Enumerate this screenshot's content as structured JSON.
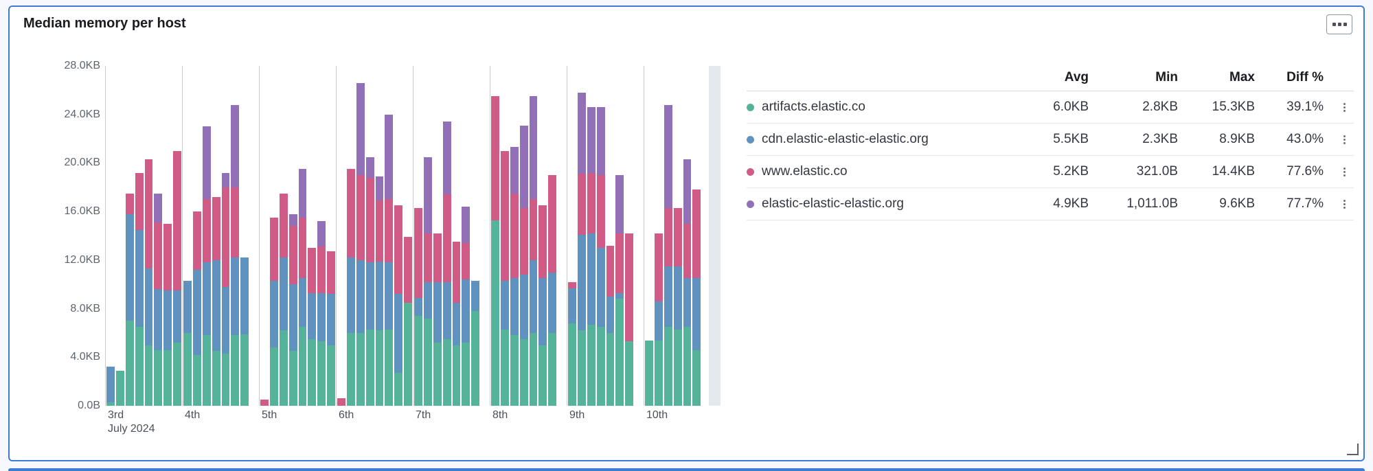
{
  "panel": {
    "title": "Median memory per host",
    "options_icon": "boxes-horizontal-icon",
    "accent_border_color": "#3d7bd7"
  },
  "legend": {
    "columns": [
      "Avg",
      "Min",
      "Max",
      "Diff %"
    ],
    "rows": [
      {
        "name": "artifacts.elastic.co",
        "color": "#54b399",
        "avg": "6.0KB",
        "min": "2.8KB",
        "max": "15.3KB",
        "diff": "39.1%"
      },
      {
        "name": "cdn.elastic-elastic-elastic.org",
        "color": "#6092c0",
        "avg": "5.5KB",
        "min": "2.3KB",
        "max": "8.9KB",
        "diff": "43.0%"
      },
      {
        "name": "www.elastic.co",
        "color": "#d15b87",
        "avg": "5.2KB",
        "min": "321.0B",
        "max": "14.4KB",
        "diff": "77.6%"
      },
      {
        "name": "elastic-elastic-elastic.org",
        "color": "#9170b8",
        "avg": "4.9KB",
        "min": "1,011.0B",
        "max": "9.6KB",
        "diff": "77.7%"
      }
    ]
  },
  "chart_data": {
    "type": "bar",
    "stacked": true,
    "title": "Median memory per host",
    "unit": "KB",
    "ylim": [
      0,
      28
    ],
    "y_ticks_top_to_bottom": [
      "28.0KB",
      "24.0KB",
      "20.0KB",
      "16.0KB",
      "12.0KB",
      "8.0KB",
      "4.0KB",
      "0.0B"
    ],
    "x_axis_label": "July 2024",
    "grid": "vertical-day-lines",
    "legend_position": "right-table",
    "series": [
      {
        "name": "artifacts.elastic.co",
        "color": "#54b399"
      },
      {
        "name": "cdn.elastic-elastic-elastic.org",
        "color": "#6092c0"
      },
      {
        "name": "www.elastic.co",
        "color": "#d15b87"
      },
      {
        "name": "elastic-elastic-elastic.org",
        "color": "#9170b8"
      }
    ],
    "stack_order_note": "each bar = [artifacts, cdn, www, elastic-elastic] in KB, bottom to top",
    "days": [
      {
        "label": "3rd",
        "bars": [
          [
            0.3,
            2.9,
            0,
            0
          ],
          [
            2.9,
            0,
            0,
            0
          ],
          [
            7.0,
            8.8,
            1.7,
            0
          ],
          [
            6.5,
            8.0,
            4.7,
            0
          ],
          [
            5.0,
            6.3,
            9.0,
            0
          ],
          [
            4.6,
            5.0,
            5.5,
            2.4
          ],
          [
            4.6,
            4.9,
            5.5,
            0
          ],
          [
            5.2,
            4.3,
            11.5,
            0
          ]
        ]
      },
      {
        "label": "4th",
        "bars": [
          [
            6.0,
            4.3,
            0,
            0
          ],
          [
            4.2,
            7.0,
            4.8,
            0
          ],
          [
            5.8,
            6.0,
            5.2,
            6.0
          ],
          [
            4.5,
            7.5,
            5.2,
            0
          ],
          [
            4.3,
            5.5,
            8.2,
            1.2
          ],
          [
            5.8,
            6.4,
            5.8,
            6.8
          ],
          [
            5.9,
            6.3,
            0,
            0
          ],
          [
            0,
            0,
            0,
            0
          ]
        ]
      },
      {
        "label": "5th",
        "bars": [
          [
            0,
            0,
            0.5,
            0
          ],
          [
            4.8,
            5.5,
            5.2,
            0
          ],
          [
            6.2,
            6.0,
            5.3,
            0
          ],
          [
            4.5,
            5.5,
            4.8,
            1.0
          ],
          [
            6.5,
            4.0,
            5.0,
            4.0
          ],
          [
            5.5,
            3.8,
            3.7,
            0
          ],
          [
            5.3,
            4.0,
            3.8,
            2.1
          ],
          [
            5.0,
            4.2,
            3.5,
            0
          ]
        ]
      },
      {
        "label": "6th",
        "bars": [
          [
            0,
            0,
            0.6,
            0
          ],
          [
            6.0,
            6.2,
            7.3,
            0
          ],
          [
            6.0,
            6.0,
            7.0,
            7.6
          ],
          [
            6.3,
            5.5,
            7.0,
            1.7
          ],
          [
            6.2,
            5.7,
            5.0,
            2.0
          ],
          [
            6.3,
            5.5,
            5.2,
            7.0
          ],
          [
            2.7,
            6.5,
            7.3,
            0
          ],
          [
            8.5,
            0,
            5.4,
            0
          ]
        ]
      },
      {
        "label": "7th",
        "bars": [
          [
            7.4,
            1.5,
            7.4,
            0
          ],
          [
            7.2,
            3.0,
            4.0,
            6.3
          ],
          [
            5.2,
            5.0,
            4.0,
            0
          ],
          [
            5.5,
            4.7,
            7.2,
            6.0
          ],
          [
            5.0,
            3.5,
            5.0,
            0
          ],
          [
            5.2,
            5.2,
            3.0,
            3.0
          ],
          [
            7.8,
            2.5,
            0,
            0
          ],
          [
            0,
            0,
            0,
            0
          ]
        ]
      },
      {
        "label": "8th",
        "bars": [
          [
            15.3,
            0,
            10.2,
            0
          ],
          [
            6.3,
            4.0,
            10.7,
            0
          ],
          [
            5.8,
            4.7,
            7.0,
            3.8
          ],
          [
            5.5,
            5.3,
            5.5,
            6.8
          ],
          [
            6.0,
            6.0,
            5.0,
            8.5
          ],
          [
            5.0,
            5.5,
            6.0,
            0
          ],
          [
            6.0,
            5.0,
            8.0,
            0
          ],
          [
            0,
            0,
            0,
            0
          ]
        ]
      },
      {
        "label": "9th",
        "bars": [
          [
            6.8,
            2.9,
            0.5,
            0
          ],
          [
            6.2,
            7.9,
            5.0,
            6.7
          ],
          [
            6.7,
            7.5,
            5.0,
            5.4
          ],
          [
            6.5,
            6.5,
            6.0,
            5.6
          ],
          [
            6.0,
            3.0,
            4.2,
            0
          ],
          [
            8.8,
            0.5,
            4.9,
            4.8
          ],
          [
            5.3,
            0,
            8.9,
            0
          ],
          [
            0,
            0,
            0,
            0
          ]
        ]
      },
      {
        "label": "10th",
        "bars": [
          [
            5.4,
            0,
            0,
            0
          ],
          [
            5.4,
            3.2,
            5.6,
            0
          ],
          [
            6.5,
            5.0,
            4.8,
            8.5
          ],
          [
            6.3,
            5.2,
            4.8,
            0
          ],
          [
            6.5,
            4.0,
            4.5,
            5.3
          ],
          [
            4.6,
            5.9,
            7.3,
            0
          ],
          [
            0,
            0,
            0,
            0
          ],
          [
            0,
            0,
            0,
            0
          ]
        ]
      }
    ]
  }
}
